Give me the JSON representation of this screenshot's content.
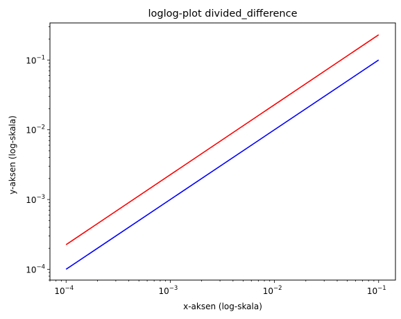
{
  "chart_data": {
    "type": "line",
    "title": "loglog-plot divided_difference",
    "xlabel": "x-aksen (log-skala)",
    "ylabel": "y-aksen (log-skala)",
    "xscale": "log",
    "yscale": "log",
    "xlim": [
      7e-05,
      0.145
    ],
    "ylim": [
      7e-05,
      0.34
    ],
    "grid": false,
    "series": [
      {
        "color": "#ff0000",
        "x": [
          0.0001,
          0.1
        ],
        "y": [
          0.000225,
          0.23
        ]
      },
      {
        "color": "#0000ff",
        "x": [
          0.0001,
          0.1
        ],
        "y": [
          0.0001,
          0.1
        ]
      }
    ],
    "xticks": [
      {
        "value": 0.0001,
        "mant": "10",
        "exp": "−4"
      },
      {
        "value": 0.001,
        "mant": "10",
        "exp": "−3"
      },
      {
        "value": 0.01,
        "mant": "10",
        "exp": "−2"
      },
      {
        "value": 0.1,
        "mant": "10",
        "exp": "−1"
      }
    ],
    "yticks": [
      {
        "value": 0.0001,
        "mant": "10",
        "exp": "−4"
      },
      {
        "value": 0.001,
        "mant": "10",
        "exp": "−3"
      },
      {
        "value": 0.01,
        "mant": "10",
        "exp": "−2"
      },
      {
        "value": 0.1,
        "mant": "10",
        "exp": "−1"
      }
    ]
  }
}
